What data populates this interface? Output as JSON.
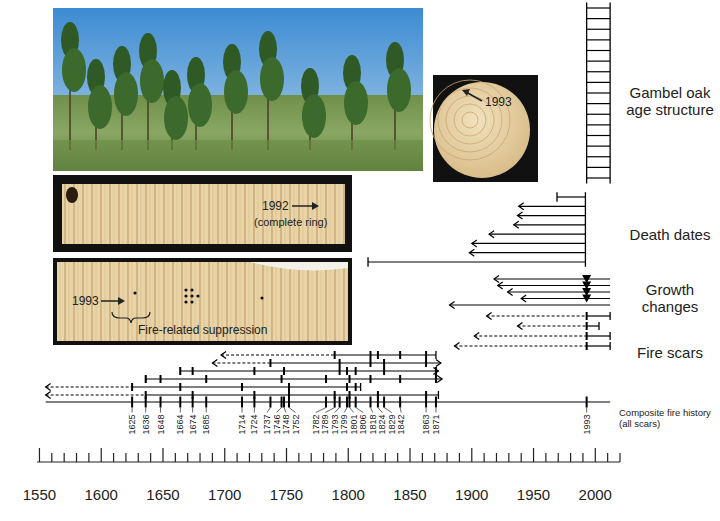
{
  "chart_data": {
    "type": "fire_history",
    "color": "#000000",
    "xlim": [
      1548,
      2020
    ],
    "xticks": [
      1550,
      1600,
      1650,
      1700,
      1750,
      1800,
      1850,
      1900,
      1950,
      2000
    ],
    "minor_xticks": [
      1560,
      1570,
      1580,
      1590,
      1610,
      1620,
      1630,
      1640,
      1660,
      1670,
      1680,
      1690,
      1710,
      1720,
      1730,
      1740,
      1760,
      1770,
      1780,
      1790,
      1810,
      1820,
      1830,
      1840,
      1860,
      1870,
      1880,
      1890,
      1910,
      1920,
      1930,
      1940,
      1960,
      1970,
      1980,
      1990,
      2010,
      2020
    ],
    "series": [
      {
        "name": "Gambel oak age structure",
        "rows": [
          {
            "start": 1993,
            "end": 2012,
            "start_marker": "bar",
            "end_marker": "bar"
          },
          {
            "start": 1993,
            "end": 2012,
            "start_marker": "bar",
            "end_marker": "bar"
          },
          {
            "start": 1993,
            "end": 2012,
            "start_marker": "bar",
            "end_marker": "bar"
          },
          {
            "start": 1993,
            "end": 2012,
            "start_marker": "bar",
            "end_marker": "bar"
          },
          {
            "start": 1993,
            "end": 2012,
            "start_marker": "bar",
            "end_marker": "bar"
          },
          {
            "start": 1993,
            "end": 2012,
            "start_marker": "bar",
            "end_marker": "bar"
          },
          {
            "start": 1993,
            "end": 2012,
            "start_marker": "bar",
            "end_marker": "bar"
          },
          {
            "start": 1993,
            "end": 2012,
            "start_marker": "bar",
            "end_marker": "bar"
          },
          {
            "start": 1993,
            "end": 2012,
            "start_marker": "bar",
            "end_marker": "bar"
          },
          {
            "start": 1993,
            "end": 2012,
            "start_marker": "bar",
            "end_marker": "bar"
          },
          {
            "start": 1993,
            "end": 2012,
            "start_marker": "bar",
            "end_marker": "bar"
          },
          {
            "start": 1993,
            "end": 2012,
            "start_marker": "bar",
            "end_marker": "bar"
          },
          {
            "start": 1993,
            "end": 2012,
            "start_marker": "bar",
            "end_marker": "bar"
          },
          {
            "start": 1993,
            "end": 2012,
            "start_marker": "bar",
            "end_marker": "bar"
          },
          {
            "start": 1993,
            "end": 2012,
            "start_marker": "bar",
            "end_marker": "bar"
          },
          {
            "start": 1993,
            "end": 2012,
            "start_marker": "bar",
            "end_marker": "bar"
          },
          {
            "start": 1993,
            "end": 2012,
            "start_marker": "bar",
            "end_marker": "bar"
          }
        ]
      },
      {
        "name": "Death dates",
        "rows": [
          {
            "start": 1969,
            "end": 1992,
            "start_marker": "bar",
            "end_marker": "bar"
          },
          {
            "start": 1938,
            "end": 1992,
            "start_marker": "arrow",
            "end_marker": "bar"
          },
          {
            "start": 1937,
            "end": 1992,
            "start_marker": "arrow",
            "end_marker": "bar"
          },
          {
            "start": 1934,
            "end": 1992,
            "start_marker": "arrow",
            "end_marker": "bar"
          },
          {
            "start": 1914,
            "end": 1992,
            "start_marker": "arrow",
            "end_marker": "bar"
          },
          {
            "start": 1900,
            "end": 1992,
            "start_marker": "arrow",
            "end_marker": "bar"
          },
          {
            "start": 1898,
            "end": 1992,
            "start_marker": "arrow",
            "end_marker": "bar"
          },
          {
            "start": 1816,
            "end": 1992,
            "start_marker": "bar",
            "end_marker": "bar"
          }
        ]
      },
      {
        "name": "Growth changes",
        "marker": "triangle",
        "rows": [
          {
            "start": 1918,
            "end": 2012,
            "change": 1993,
            "start_marker": "arrow",
            "end_marker": "none"
          },
          {
            "start": 1921,
            "end": 2012,
            "change": 1993,
            "start_marker": "arrow",
            "end_marker": "none"
          },
          {
            "start": 1929,
            "end": 2012,
            "change": 1993,
            "start_marker": "arrow",
            "end_marker": "none"
          },
          {
            "start": 1940,
            "end": 2012,
            "change": 1993,
            "start_marker": "arrow",
            "end_marker": "none"
          },
          {
            "start": 1882,
            "end": 2012,
            "start_marker": "arrow",
            "end_marker": "none"
          }
        ]
      },
      {
        "name": "Fire scars",
        "marker": "tick",
        "rows": [
          {
            "start": 1912,
            "recording_start": 1993,
            "end": 2012,
            "scars": [
              1993
            ],
            "start_marker": "arrow",
            "end_marker": "bar"
          },
          {
            "start": 1937,
            "recording_start": 1993,
            "end": 2003,
            "scars": [
              1993
            ],
            "start_marker": "arrow",
            "end_marker": "bar"
          },
          {
            "start": 1902,
            "recording_start": 1993,
            "end": 2012,
            "scars": [
              1993
            ],
            "start_marker": "arrow",
            "end_marker": "bar"
          },
          {
            "start": 1886,
            "recording_start": 1993,
            "end": 2012,
            "scars": [
              1993
            ],
            "start_marker": "arrow",
            "end_marker": "bar"
          },
          {
            "start": 1697,
            "recording_start": 1789,
            "end": 1871,
            "scars": [
              1789,
              1818,
              1824,
              1842,
              1863
            ],
            "start_marker": "arrow",
            "end_marker": "bar"
          },
          {
            "start": 1690,
            "recording_start": 1737,
            "end": 1875,
            "scars": [
              1737,
              1793,
              1818,
              1829,
              1863
            ],
            "start_marker": "arrow",
            "end_marker": "arrow"
          },
          {
            "start": 1664,
            "end": 1873,
            "scars": [
              1664,
              1674,
              1724,
              1748,
              1793,
              1799,
              1806,
              1829,
              1871
            ],
            "start_marker": "bar",
            "end_marker": "arrow"
          },
          {
            "start": 1636,
            "end": 1876,
            "scars": [
              1636,
              1648,
              1685,
              1746,
              1782,
              1801,
              1818,
              1842,
              1871
            ],
            "start_marker": "bar",
            "end_marker": "arrow"
          },
          {
            "start": 1555,
            "recording_start": 1625,
            "end": 1810,
            "scars": [
              1625,
              1664,
              1714,
              1752,
              1799,
              1806
            ],
            "start_marker": "arrow",
            "end_marker": "bar"
          },
          {
            "start": 1555,
            "recording_start": 1636,
            "end": 1873,
            "scars": [
              1636,
              1674,
              1724,
              1752,
              1789,
              1801,
              1824,
              1863
            ],
            "start_marker": "arrow",
            "end_marker": "bar"
          }
        ]
      },
      {
        "name": "Composite fire history (all scars)",
        "marker": "tick",
        "data_labels": true,
        "rows": [
          {
            "start": 1555,
            "end": 2012,
            "scars": [
              1625,
              1636,
              1648,
              1664,
              1674,
              1685,
              1714,
              1724,
              1737,
              1746,
              1748,
              1752,
              1782,
              1789,
              1793,
              1799,
              1801,
              1806,
              1818,
              1824,
              1829,
              1842,
              1863,
              1871,
              1993
            ],
            "start_marker": "none",
            "end_marker": "none"
          }
        ]
      }
    ]
  },
  "annotations": [
    {
      "text": "1993"
    },
    {
      "text": "1992",
      "note": "(complete ring)"
    },
    {
      "text": "1993",
      "note": "Fire-related suppression"
    }
  ]
}
